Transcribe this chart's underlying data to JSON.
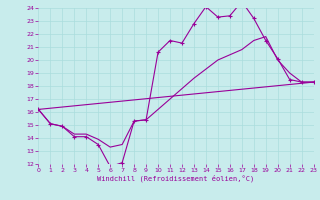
{
  "xlabel": "Windchill (Refroidissement éolien,°C)",
  "bg_color": "#c8ecec",
  "line_color": "#990099",
  "grid_color": "#aadddd",
  "xmin": 0,
  "xmax": 23,
  "ymin": 12,
  "ymax": 24,
  "yticks": [
    12,
    13,
    14,
    15,
    16,
    17,
    18,
    19,
    20,
    21,
    22,
    23,
    24
  ],
  "xticks": [
    0,
    1,
    2,
    3,
    4,
    5,
    6,
    7,
    8,
    9,
    10,
    11,
    12,
    13,
    14,
    15,
    16,
    17,
    18,
    19,
    20,
    21,
    22,
    23
  ],
  "line1_x": [
    0,
    1,
    2,
    3,
    4,
    5,
    6,
    7,
    8,
    9,
    10,
    11,
    12,
    13,
    14,
    15,
    16,
    17,
    18,
    19,
    20,
    21,
    22,
    23
  ],
  "line1_y": [
    16.2,
    15.1,
    14.9,
    14.1,
    14.1,
    13.5,
    11.8,
    12.1,
    15.3,
    15.4,
    20.6,
    21.5,
    21.3,
    22.8,
    24.1,
    23.3,
    23.4,
    24.5,
    23.2,
    21.5,
    20.1,
    18.5,
    18.3,
    18.3
  ],
  "line2_x": [
    0,
    23
  ],
  "line2_y": [
    16.2,
    18.3
  ],
  "line3_x": [
    0,
    1,
    2,
    3,
    4,
    5,
    6,
    7,
    8,
    9,
    10,
    11,
    12,
    13,
    14,
    15,
    16,
    17,
    18,
    19,
    20,
    21,
    22,
    23
  ],
  "line3_y": [
    16.2,
    15.1,
    14.9,
    14.3,
    14.3,
    13.9,
    13.3,
    13.5,
    15.3,
    15.4,
    16.2,
    17.0,
    17.8,
    18.6,
    19.3,
    20.0,
    20.4,
    20.8,
    21.5,
    21.8,
    20.0,
    19.0,
    18.3,
    18.3
  ]
}
